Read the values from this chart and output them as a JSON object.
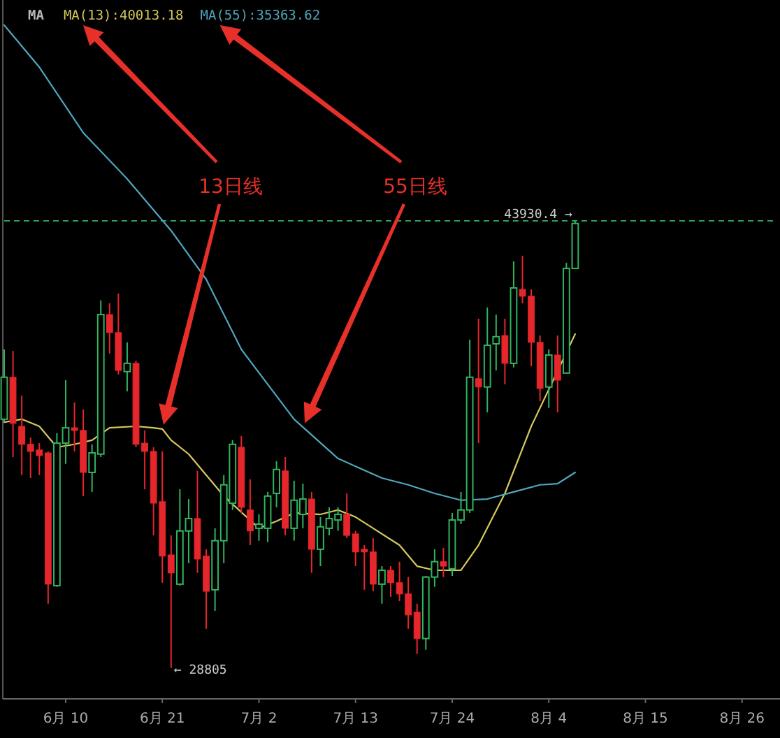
{
  "chart_data": {
    "type": "candlestick",
    "tick_labels": "x",
    "legend": "top left",
    "legend_title": "MA",
    "x": [
      "--06-03",
      "--06-04",
      "--06-05",
      "--06-06",
      "--06-07",
      "--06-08",
      "--06-09",
      "--06-10",
      "--06-11",
      "--06-12",
      "--06-13",
      "--06-14",
      "--06-15",
      "--06-16",
      "--06-17",
      "--06-18",
      "--06-19",
      "--06-20",
      "--06-21",
      "--06-22",
      "--06-23",
      "--06-24",
      "--06-25",
      "--06-26",
      "--06-27",
      "--06-28",
      "--06-29",
      "--06-30",
      "--07-01",
      "--07-02",
      "--07-03",
      "--07-04",
      "--07-05",
      "--07-06",
      "--07-07",
      "--07-08",
      "--07-09",
      "--07-10",
      "--07-11",
      "--07-12",
      "--07-13",
      "--07-14",
      "--07-15",
      "--07-16",
      "--07-17",
      "--07-18",
      "--07-19",
      "--07-20",
      "--07-21",
      "--07-22",
      "--07-23",
      "--07-24",
      "--07-25",
      "--07-26",
      "--07-27",
      "--07-28",
      "--07-29",
      "--07-30",
      "--07-31",
      "--08-01",
      "--08-02",
      "--08-03",
      "--08-04",
      "--08-05",
      "--08-06",
      "--08-07"
    ],
    "ohlc": [
      [
        37220,
        39580,
        37120,
        38640
      ],
      [
        38640,
        39530,
        35940,
        37080
      ],
      [
        36980,
        38020,
        35330,
        36370
      ],
      [
        36370,
        36600,
        35230,
        36130
      ],
      [
        36180,
        36410,
        35330,
        35990
      ],
      [
        36080,
        36130,
        30980,
        31640
      ],
      [
        31590,
        36750,
        31550,
        36410
      ],
      [
        36410,
        38540,
        35710,
        36930
      ],
      [
        36930,
        37790,
        36130,
        36840
      ],
      [
        36840,
        37550,
        34620,
        35420
      ],
      [
        35420,
        36370,
        34760,
        36080
      ],
      [
        36040,
        41240,
        35940,
        40760
      ],
      [
        40760,
        41140,
        39440,
        40150
      ],
      [
        40150,
        41470,
        38730,
        38870
      ],
      [
        38830,
        39820,
        38160,
        39110
      ],
      [
        39110,
        39200,
        36270,
        36370
      ],
      [
        36410,
        36840,
        34850,
        36130
      ],
      [
        36130,
        36270,
        33290,
        34380
      ],
      [
        34430,
        36130,
        31690,
        32590
      ],
      [
        32630,
        33290,
        28805,
        32020
      ],
      [
        31640,
        34850,
        31590,
        33440
      ],
      [
        33440,
        34520,
        32350,
        33860
      ],
      [
        33860,
        35470,
        32020,
        32490
      ],
      [
        32590,
        32820,
        30130,
        31400
      ],
      [
        31450,
        33530,
        30740,
        33110
      ],
      [
        33110,
        35330,
        32350,
        35000
      ],
      [
        34380,
        36510,
        34150,
        36370
      ],
      [
        36270,
        36650,
        34050,
        34240
      ],
      [
        34150,
        35190,
        32960,
        33440
      ],
      [
        33530,
        34000,
        33110,
        33670
      ],
      [
        33530,
        34760,
        33060,
        34620
      ],
      [
        34710,
        35800,
        34240,
        35520
      ],
      [
        35470,
        35940,
        33290,
        33530
      ],
      [
        33530,
        35140,
        33110,
        34480
      ],
      [
        34000,
        35040,
        33530,
        34520
      ],
      [
        34520,
        34760,
        32020,
        32820
      ],
      [
        32820,
        33910,
        32250,
        33580
      ],
      [
        33530,
        34240,
        33290,
        33860
      ],
      [
        33810,
        34240,
        33440,
        34000
      ],
      [
        34000,
        34710,
        33200,
        33290
      ],
      [
        33340,
        33440,
        32250,
        32730
      ],
      [
        32820,
        32960,
        31450,
        32730
      ],
      [
        32730,
        33200,
        31400,
        31640
      ],
      [
        31640,
        32250,
        30980,
        32110
      ],
      [
        32110,
        32250,
        31210,
        31690
      ],
      [
        31690,
        32400,
        31070,
        31310
      ],
      [
        31310,
        31880,
        30130,
        30600
      ],
      [
        30690,
        30980,
        29280,
        29800
      ],
      [
        29800,
        31920,
        29420,
        31880
      ],
      [
        31880,
        32820,
        31550,
        32400
      ],
      [
        32400,
        32870,
        31880,
        32250
      ],
      [
        32160,
        34050,
        31920,
        33810
      ],
      [
        33810,
        34760,
        33670,
        34150
      ],
      [
        34150,
        39910,
        34050,
        38640
      ],
      [
        38590,
        40620,
        36410,
        38310
      ],
      [
        38310,
        41000,
        37450,
        39720
      ],
      [
        39770,
        40760,
        38870,
        40010
      ],
      [
        40050,
        40620,
        38400,
        39110
      ],
      [
        39110,
        42560,
        38970,
        41660
      ],
      [
        41610,
        42750,
        41140,
        41380
      ],
      [
        41380,
        41610,
        39010,
        39820
      ],
      [
        39820,
        40050,
        37830,
        38260
      ],
      [
        38310,
        39580,
        37600,
        39390
      ],
      [
        39390,
        40050,
        37450,
        38540
      ],
      [
        38780,
        42510,
        38780,
        42320
      ],
      [
        42320,
        43930.4,
        42320,
        43840
      ]
    ],
    "series": [
      {
        "name": "MA(13):40013.18",
        "type": "line",
        "color": "#d6c85c",
        "x": [
          "--06-03",
          "--06-05",
          "--06-07",
          "--06-09",
          "--06-11",
          "--06-13",
          "--06-15",
          "--06-18",
          "--06-20",
          "--06-21",
          "--06-22",
          "--06-24",
          "--06-26",
          "--06-28",
          "--07-02",
          "--07-04",
          "--07-06",
          "--07-09",
          "--07-11",
          "--07-13",
          "--07-15",
          "--07-18",
          "--07-20",
          "--07-22",
          "--07-25",
          "--07-27",
          "--07-30",
          "--08-02",
          "--08-07"
        ],
        "values": [
          37120,
          37220,
          36980,
          36270,
          36370,
          36510,
          36930,
          36980,
          36930,
          36890,
          36510,
          36040,
          35330,
          34620,
          33530,
          33770,
          34050,
          34000,
          34150,
          33910,
          33530,
          32960,
          32250,
          32110,
          32110,
          32960,
          34710,
          36980,
          40100
        ]
      },
      {
        "name": "MA(55):35363.62",
        "type": "line",
        "color": "#4fa6bd",
        "x": [
          "--06-03",
          "--06-07",
          "--06-12",
          "--06-17",
          "--06-22",
          "--06-26",
          "--06-30",
          "--07-06",
          "--07-11",
          "--07-16",
          "--07-19",
          "--07-22",
          "--07-25",
          "--07-28",
          "--07-31",
          "--08-03",
          "--08-05",
          "--08-07"
        ],
        "values": [
          50550,
          49130,
          46910,
          45350,
          43600,
          41950,
          39580,
          37220,
          35890,
          35230,
          35000,
          34710,
          34480,
          34520,
          34760,
          35000,
          35040,
          35420
        ]
      }
    ],
    "xlim": [
      "--06-03",
      "--08-30"
    ],
    "ylim": [
      27760,
      51400
    ],
    "xticks": [
      {
        "value": "--06-10",
        "label": "6月 10"
      },
      {
        "value": "--06-21",
        "label": "6月 21"
      },
      {
        "value": "--07-02",
        "label": "7月 2"
      },
      {
        "value": "--07-13",
        "label": "7月 13"
      },
      {
        "value": "--07-24",
        "label": "7月 24"
      },
      {
        "value": "--08-04",
        "label": "8月 4"
      },
      {
        "value": "--08-15",
        "label": "8月 15"
      },
      {
        "value": "--08-26",
        "label": "8月 26"
      }
    ],
    "ref_lines": [
      {
        "axis": "y",
        "value": 43930.4,
        "color": "#2e9e5e",
        "line_style": "dashed"
      }
    ],
    "annotations": [
      "13日线",
      "55日线",
      {
        "text": "43930.4 →",
        "x": "--08-07",
        "y": 43930.4
      },
      {
        "text": "← 28805",
        "x": "--06-22",
        "y": 28805
      }
    ]
  }
}
